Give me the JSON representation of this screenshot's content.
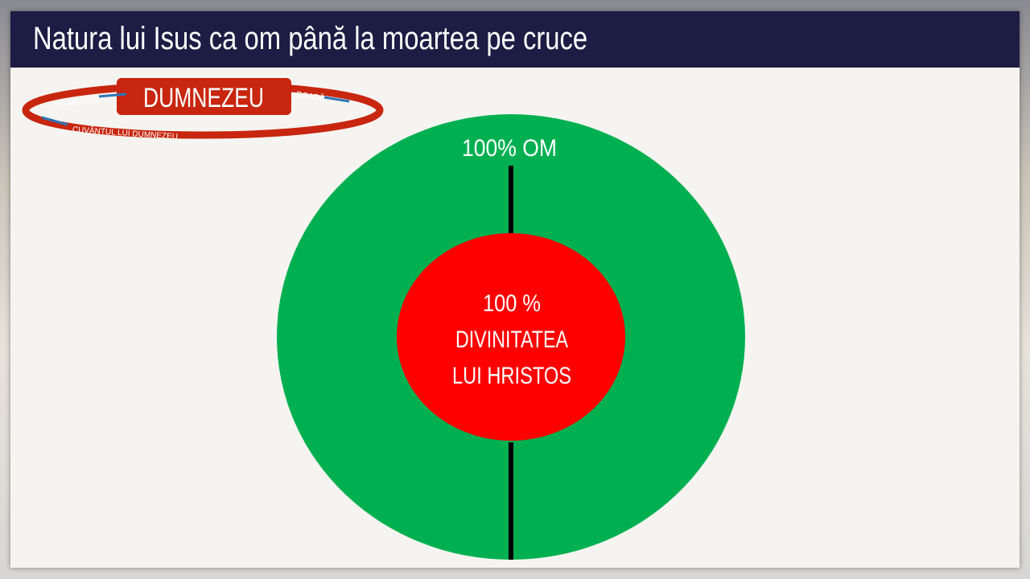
{
  "title": "Natura lui Isus ca om până la moartea pe cruce",
  "ring": {
    "center": "DUMNEZEU",
    "left": "DRAGOSTEA",
    "right": "ROADĂ",
    "bottom": "CUVÂNTUL LUI DUMNEZEU"
  },
  "outer": {
    "label": "100% OM",
    "color": "#00b050"
  },
  "inner": {
    "line1": "100 %",
    "line2": "DIVINITATEA",
    "line3": "LUI HRISTOS",
    "color": "#ff0000"
  }
}
